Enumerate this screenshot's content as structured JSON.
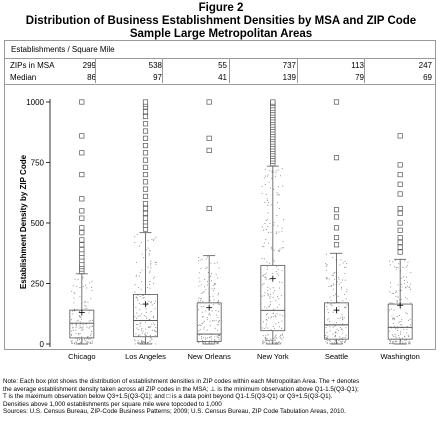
{
  "figure": {
    "label": "Figure 2",
    "title": "Distribution of Business Establishment Densities by MSA and ZIP Code",
    "subtitle": "Sample Large Metropolitan Areas"
  },
  "stats_table": {
    "header": "Establishments / Square Mile",
    "row_labels": [
      "ZIPs in MSA",
      "Median"
    ],
    "zips": [
      "299",
      "538",
      "55",
      "737",
      "113",
      "247"
    ],
    "medians": [
      "86",
      "97",
      "41",
      "139",
      "79",
      "69"
    ]
  },
  "chart_data": {
    "type": "box",
    "title": "Distribution of Business Establishment Densities by MSA and ZIP Code",
    "ylabel": "Establishment Density by ZIP Code",
    "ylim": [
      0,
      1000
    ],
    "yticks": [
      "0",
      "250",
      "500",
      "750",
      "1000"
    ],
    "yticks_values": [
      0,
      250,
      500,
      750,
      1000
    ],
    "categories": [
      "Chicago",
      "Los Angeles",
      "New Orleans",
      "New York",
      "Seattle",
      "Washington"
    ],
    "boxes": [
      {
        "category": "Chicago",
        "whisker_low": 0,
        "q1": 25,
        "median": 86,
        "q3": 140,
        "whisker_high": 290,
        "mean": 130,
        "outliers": [
          300,
          310,
          320,
          330,
          345,
          360,
          375,
          390,
          410,
          430,
          460,
          480,
          520,
          550,
          600,
          700,
          790,
          860,
          1000
        ]
      },
      {
        "category": "Los Angeles",
        "whisker_low": 0,
        "q1": 30,
        "median": 97,
        "q3": 205,
        "whisker_high": 460,
        "mean": 165,
        "outliers": [
          475,
          490,
          505,
          520,
          540,
          560,
          580,
          610,
          640,
          670,
          700,
          730,
          760,
          790,
          820,
          850,
          880,
          910,
          940,
          960,
          980,
          990,
          1000
        ]
      },
      {
        "category": "New Orleans",
        "whisker_low": 0,
        "q1": 10,
        "median": 41,
        "q3": 170,
        "whisker_high": 365,
        "mean": 150,
        "outliers": [
          560,
          800,
          850,
          1000
        ]
      },
      {
        "category": "New York",
        "whisker_low": 0,
        "q1": 55,
        "median": 139,
        "q3": 325,
        "whisker_high": 735,
        "mean": 270,
        "outliers": [
          745,
          755,
          765,
          775,
          785,
          795,
          805,
          815,
          825,
          835,
          845,
          855,
          865,
          875,
          885,
          895,
          905,
          915,
          925,
          935,
          945,
          955,
          965,
          975,
          985,
          995,
          1000
        ]
      },
      {
        "category": "Seattle",
        "whisker_low": 0,
        "q1": 20,
        "median": 79,
        "q3": 170,
        "whisker_high": 375,
        "mean": 140,
        "outliers": [
          410,
          440,
          480,
          525,
          555,
          770,
          1000
        ]
      },
      {
        "category": "Washington",
        "whisker_low": 0,
        "q1": 20,
        "median": 69,
        "q3": 165,
        "whisker_high": 350,
        "mean": 160,
        "outliers": [
          380,
          400,
          420,
          440,
          470,
          500,
          540,
          560,
          620,
          660,
          700,
          740,
          860
        ]
      }
    ],
    "grid": false,
    "legend": "none"
  },
  "notes": [
    "Note: Each box plot shows the distribution of establishment densities in ZIP codes within each Metropolitan Area.  The + denotes",
    "the average establishment density taken across all ZIP codes in the MSA; ⊥ is the minimum observation above Q1-1.5(Q3-Q1);",
    "T is the maximum observation below Q3+1.5(Q3-Q1); and □ is a data point beyond Q1-1.5(Q3-Q1) or Q3+1.5(Q3-Q1).",
    "Densities above 1,000 establishments per square mile were topcoded to 1,000",
    "Sources: U.S. Census Bureau, ZIP-Code Business Patterns; 2009; U.S. Census Bureau, ZIP Code Tabulation Areas, 2010."
  ]
}
